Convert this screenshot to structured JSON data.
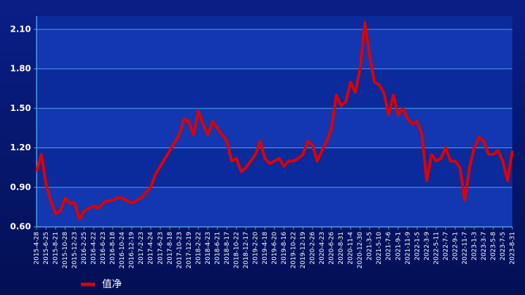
{
  "chart_data": {
    "type": "line",
    "categories": [
      "2015-4-28",
      null,
      "2015-6-25",
      null,
      "2015-8-21",
      null,
      "2015-10-28",
      null,
      "2015-12-23",
      null,
      "2016-2-25",
      null,
      "2016-4-22",
      null,
      "2016-6-23",
      null,
      "2016-8-18",
      null,
      "2016-10-24",
      null,
      "2016-12-19",
      null,
      "2017-2-23",
      null,
      "2017-4-24",
      null,
      "2017-6-23",
      null,
      "2017-8-18",
      null,
      "2017-10-23",
      null,
      "2017-12-19",
      null,
      "2018-2-22",
      null,
      "2018-4-23",
      null,
      "2018-6-21",
      null,
      "2018-8-17",
      null,
      "2018-10-22",
      null,
      "2018-12-17",
      null,
      "2019-2-20",
      null,
      "2019-4-18",
      null,
      "2019-6-20",
      null,
      "2019-8-16",
      null,
      "2019-10-22",
      null,
      "2019-12-19",
      null,
      "2020-2-26",
      null,
      "2020-4-23",
      null,
      "2020-6-26",
      null,
      "2020-8-31",
      null,
      "2020-11-4",
      null,
      "2020-12-30",
      null,
      "2021-3-5",
      null,
      "2021-5-10",
      null,
      "2021-7-6",
      null,
      "2021-9-1",
      null,
      "2021-11-9",
      null,
      "2022-1-5",
      null,
      "2022-3-9",
      null,
      "2022-5-11",
      null,
      "2022-7-7",
      null,
      "2022-9-1",
      null,
      "2022-11-7",
      null,
      "2023-1-3",
      null,
      "2023-3-7",
      null,
      "2023-5-8",
      null,
      "2023-7-5",
      null,
      "2023-8-31"
    ],
    "series": [
      {
        "name": "值净",
        "color": "#e00000",
        "values": [
          1.02,
          1.15,
          0.92,
          0.8,
          0.7,
          0.72,
          0.82,
          0.78,
          0.78,
          0.66,
          0.72,
          0.74,
          0.76,
          0.74,
          0.78,
          0.8,
          0.8,
          0.82,
          0.82,
          0.8,
          0.78,
          0.8,
          0.82,
          0.86,
          0.9,
          1.0,
          1.06,
          1.12,
          1.18,
          1.24,
          1.3,
          1.42,
          1.4,
          1.3,
          1.48,
          1.38,
          1.3,
          1.4,
          1.35,
          1.3,
          1.25,
          1.1,
          1.12,
          1.02,
          1.05,
          1.1,
          1.15,
          1.25,
          1.12,
          1.08,
          1.1,
          1.12,
          1.06,
          1.1,
          1.1,
          1.12,
          1.15,
          1.25,
          1.22,
          1.1,
          1.18,
          1.25,
          1.35,
          1.6,
          1.52,
          1.55,
          1.7,
          1.62,
          1.8,
          2.15,
          1.9,
          1.7,
          1.68,
          1.62,
          1.45,
          1.6,
          1.45,
          1.5,
          1.42,
          1.38,
          1.4,
          1.3,
          0.95,
          1.15,
          1.1,
          1.12,
          1.2,
          1.1,
          1.1,
          1.05,
          0.8,
          1.05,
          1.2,
          1.28,
          1.25,
          1.15,
          1.15,
          1.18,
          1.1,
          0.95,
          1.18
        ]
      }
    ],
    "ylim": [
      0.6,
      2.2
    ],
    "yticks": [
      {
        "value": 0.6,
        "label": "0.60"
      },
      {
        "value": 0.9,
        "label": "0.90"
      },
      {
        "value": 1.2,
        "label": "1.20"
      },
      {
        "value": 1.5,
        "label": "1.50"
      },
      {
        "value": 1.8,
        "label": "1.80"
      },
      {
        "value": 2.1,
        "label": "2.10"
      }
    ],
    "grid": true
  }
}
